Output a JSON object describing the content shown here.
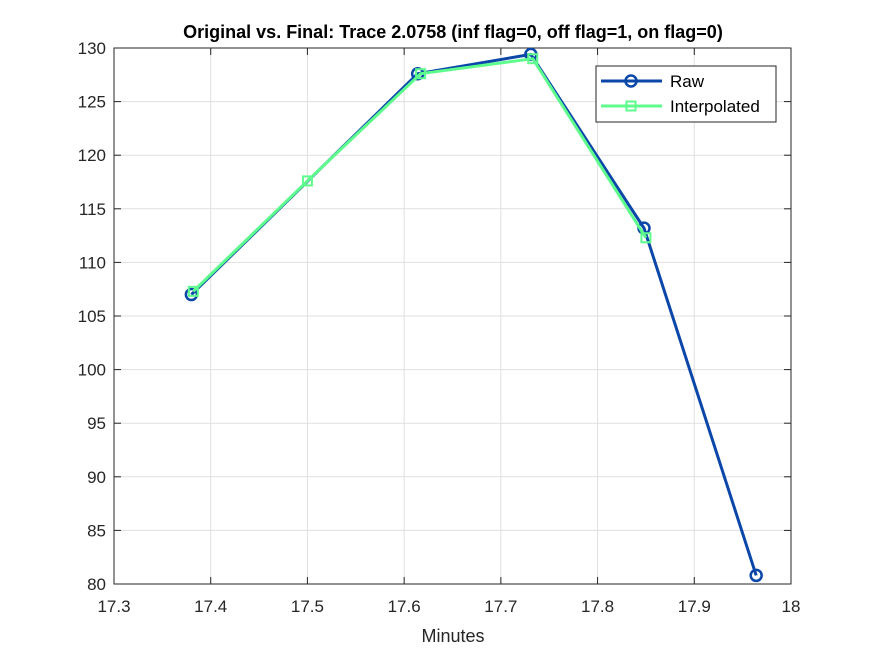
{
  "chart_data": {
    "type": "line",
    "title": "Original vs. Final: Trace 2.0758 (inf flag=0, off flag=1, on flag=0)",
    "xlabel": "Minutes",
    "ylabel": "",
    "xlim": [
      17.3,
      18
    ],
    "ylim": [
      80,
      130
    ],
    "xticks": [
      17.3,
      17.4,
      17.5,
      17.6,
      17.7,
      17.8,
      17.9,
      18
    ],
    "xtick_labels": [
      "17.3",
      "17.4",
      "17.5",
      "17.6",
      "17.7",
      "17.8",
      "17.9",
      "18"
    ],
    "yticks": [
      80,
      85,
      90,
      95,
      100,
      105,
      110,
      115,
      120,
      125,
      130
    ],
    "ytick_labels": [
      "80",
      "85",
      "90",
      "95",
      "100",
      "105",
      "110",
      "115",
      "120",
      "125",
      "130"
    ],
    "grid": true,
    "legend_position": "top-right",
    "series": [
      {
        "name": "Raw",
        "color": "#0a47a9",
        "marker": "circle",
        "x": [
          17.38,
          17.614,
          17.731,
          17.848,
          17.964
        ],
        "y": [
          107.0,
          127.6,
          129.4,
          113.2,
          80.8
        ]
      },
      {
        "name": "Interpolated",
        "color": "#5efc8d",
        "marker": "square",
        "x": [
          17.382,
          17.5,
          17.617,
          17.733,
          17.85
        ],
        "y": [
          107.3,
          117.6,
          127.6,
          129.0,
          112.3
        ]
      }
    ]
  }
}
